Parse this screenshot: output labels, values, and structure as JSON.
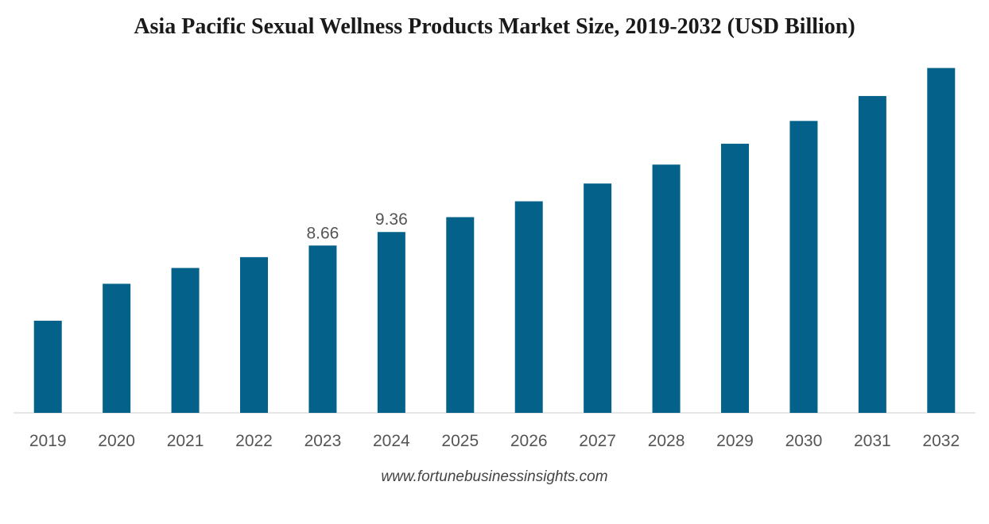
{
  "chart_data": {
    "type": "bar",
    "title": "Asia Pacific Sexual Wellness Products Market Size, 2019-2032 (USD Billion)",
    "xlabel": "",
    "ylabel": "",
    "categories": [
      "2019",
      "2020",
      "2021",
      "2022",
      "2023",
      "2024",
      "2025",
      "2026",
      "2027",
      "2028",
      "2029",
      "2030",
      "2031",
      "2032"
    ],
    "values": [
      4.77,
      6.68,
      7.5,
      8.06,
      8.66,
      9.36,
      10.13,
      10.95,
      11.87,
      12.85,
      13.93,
      15.11,
      16.4,
      17.85
    ],
    "data_labels": [
      {
        "category": "2023",
        "text": "8.66"
      },
      {
        "category": "2024",
        "text": "9.36"
      }
    ],
    "ylim": [
      0,
      18
    ],
    "grid": false,
    "legend": "none",
    "bar_color": "#04628a",
    "axis_color": "#cccccc"
  },
  "source": "www.fortunebusinessinsights.com"
}
